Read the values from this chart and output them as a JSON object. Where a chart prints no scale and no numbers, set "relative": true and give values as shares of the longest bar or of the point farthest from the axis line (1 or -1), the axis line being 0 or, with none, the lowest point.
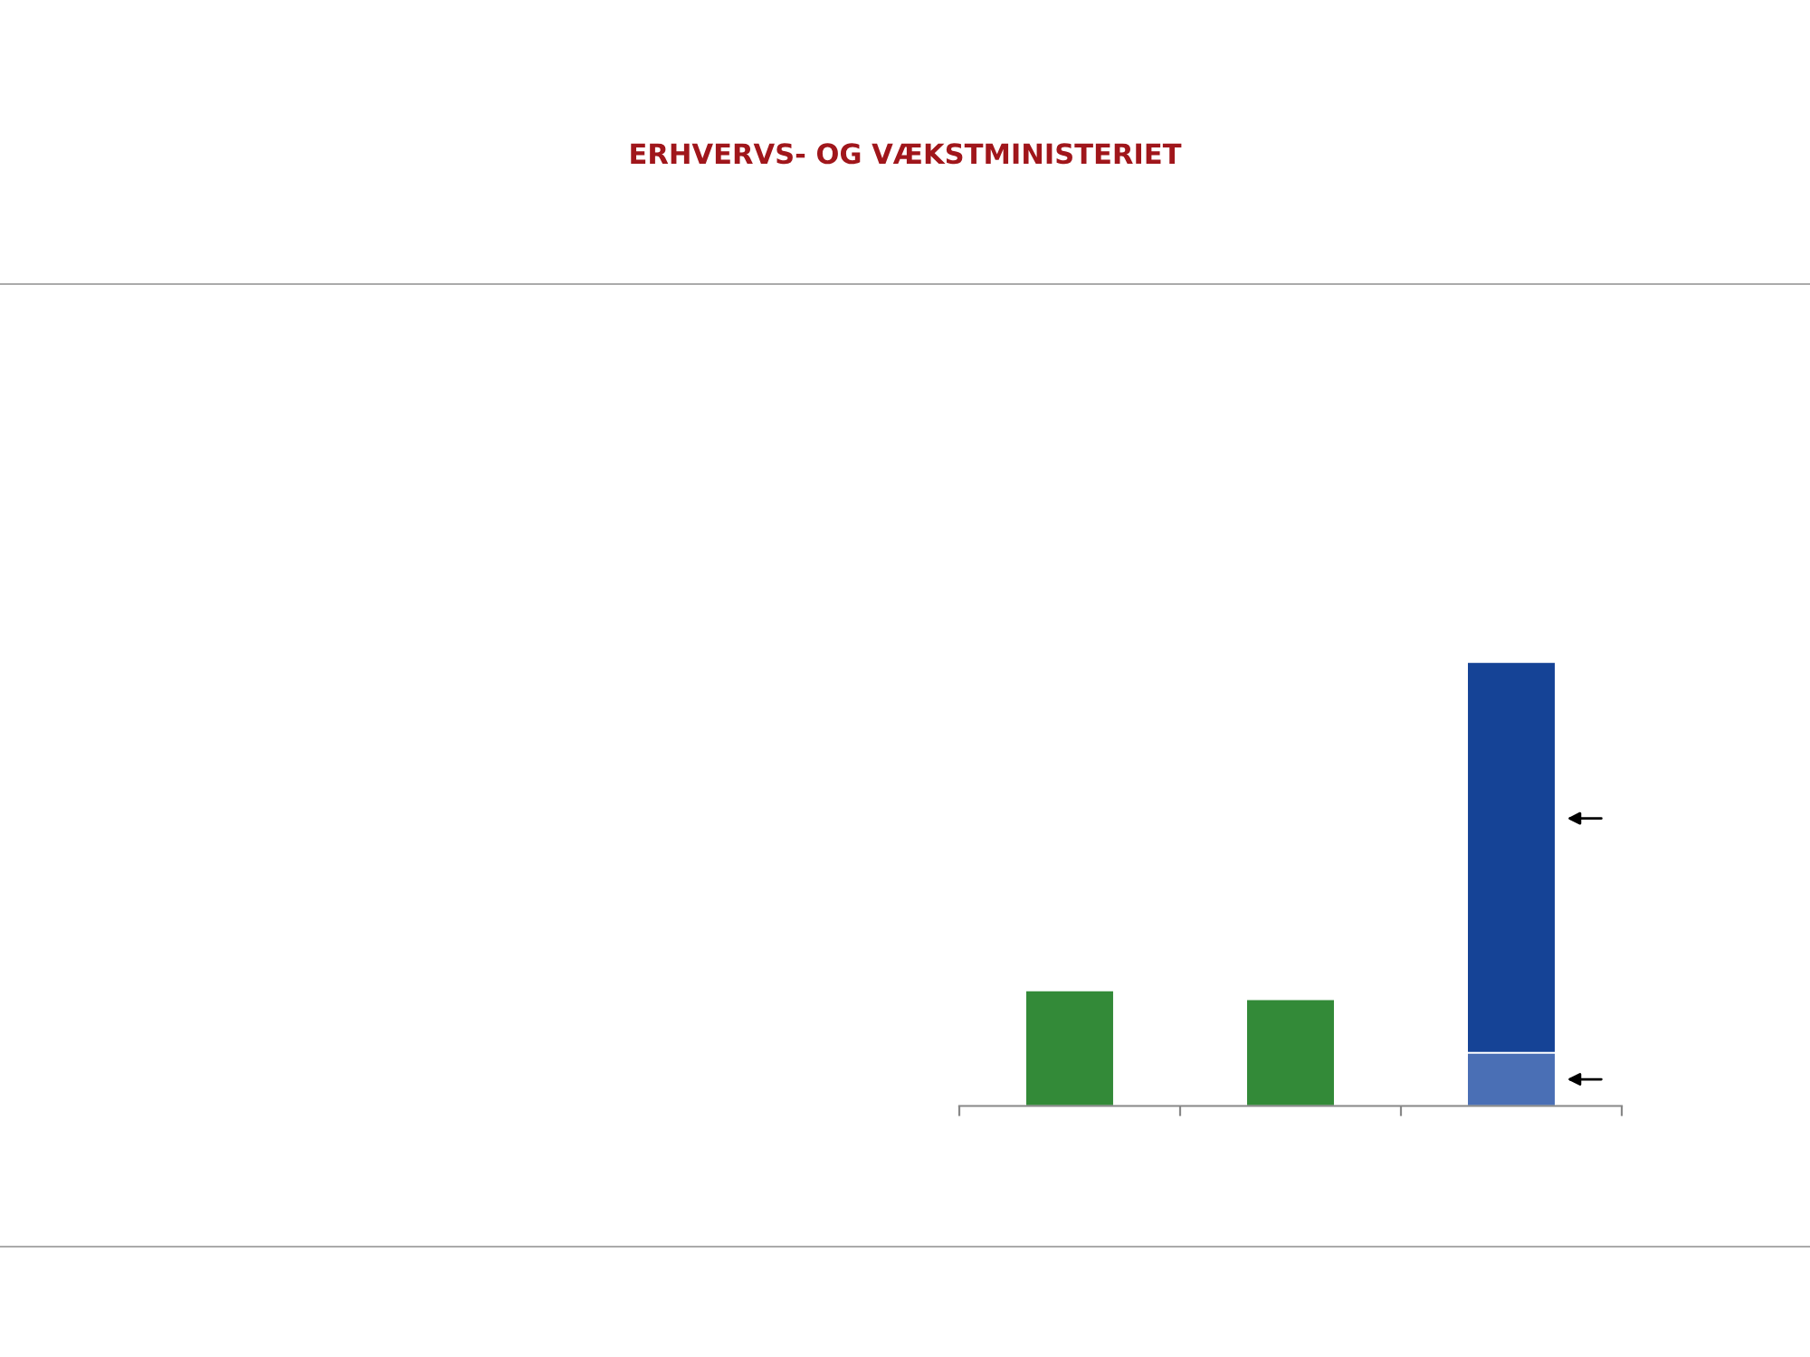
{
  "chart_data": {
    "type": "bar",
    "stacked": true,
    "relative": true,
    "categories": [
      null,
      null,
      null
    ],
    "series": [
      {
        "colors": [
          "#338a38",
          "#338a38",
          "#4a6fb5"
        ],
        "values": [
          0.26,
          0.24,
          0.12
        ]
      },
      {
        "color": "#154396",
        "values": [
          null,
          null,
          0.88
        ]
      }
    ],
    "annotations": [
      "ERHVERVS- OG VÆKSTMINISTERIET"
    ],
    "grid": false,
    "legend": false
  }
}
